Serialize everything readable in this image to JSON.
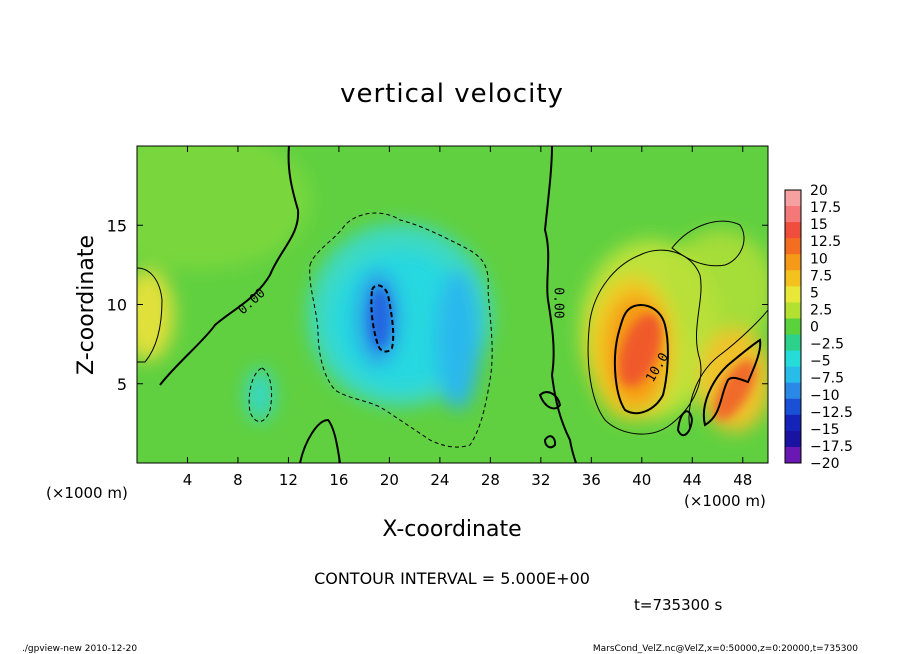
{
  "chart_data": {
    "type": "heatmap",
    "title": "vertical velocity",
    "xlabel": "X-coordinate",
    "ylabel": "Z-coordinate",
    "x_unit_left": "(×1000 m)",
    "x_unit_right": "(×1000 m)",
    "xlim": [
      0,
      50
    ],
    "ylim": [
      0,
      20
    ],
    "x_ticks": [
      4,
      8,
      12,
      16,
      20,
      24,
      28,
      32,
      36,
      40,
      44,
      48
    ],
    "y_ticks": [
      5,
      10,
      15
    ],
    "colorbar": {
      "labels": [
        "20",
        "17.5",
        "15",
        "12.5",
        "10",
        "7.5",
        "5",
        "2.5",
        "0",
        "−2.5",
        "−5",
        "−7.5",
        "−10",
        "−12.5",
        "−15",
        "−17.5",
        "−20"
      ],
      "colors": [
        "#f7a0a0",
        "#f47878",
        "#f04e3c",
        "#f36e20",
        "#f59a18",
        "#f3c21e",
        "#e8e838",
        "#b4e032",
        "#5ad23c",
        "#2cd28c",
        "#26dcd8",
        "#28bce8",
        "#2a88e6",
        "#1a50d6",
        "#1424b8",
        "#1a12a0",
        "#6a18b4"
      ]
    },
    "contour_labels": [
      {
        "text": "0.00",
        "x": 9.3,
        "z": 10.0,
        "angle": -42
      },
      {
        "text": "0.00",
        "x": 33.1,
        "z": 10.1,
        "angle": 90
      },
      {
        "text": "10.0",
        "x": 41.5,
        "z": 5.9,
        "angle": -60
      }
    ],
    "features": [
      {
        "kind": "downdraft",
        "x": 19.3,
        "z": 9.3,
        "w_min": -10
      },
      {
        "kind": "downdraft",
        "x": 25.4,
        "z": 7.8,
        "w_min": -7
      },
      {
        "kind": "updraft",
        "x": 39.6,
        "z": 7.4,
        "w_max": 13
      },
      {
        "kind": "updraft",
        "x": 46.3,
        "z": 5.0,
        "w_max": 12
      }
    ],
    "contour_interval": "CONTOUR INTERVAL = 5.000E+00",
    "time_label": "t=735300 s"
  },
  "footer": {
    "program": "./gpview-new   2010-12-20",
    "source": "MarsCond_VelZ.nc@VelZ,x=0:50000,z=0:20000,t=735300"
  }
}
